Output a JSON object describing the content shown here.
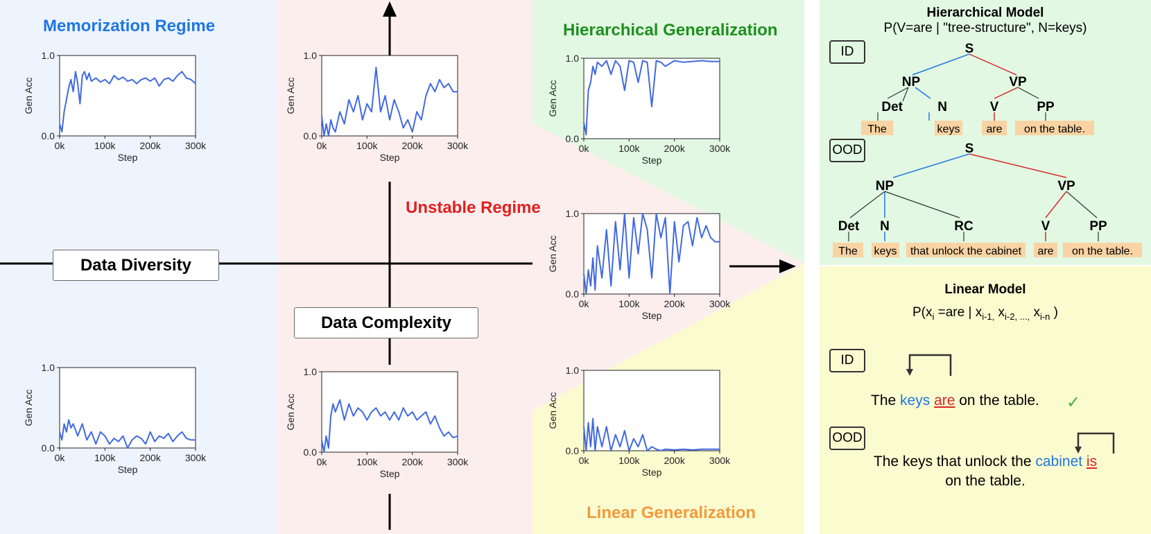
{
  "regimes": {
    "memorization": {
      "label": "Memorization Regime",
      "color": "#1f77e0"
    },
    "unstable": {
      "label": "Unstable Regime",
      "color": "#e0201f"
    },
    "hierarchical": {
      "label": "Hierarchical Generalization",
      "color": "#1e8f1e"
    },
    "linear": {
      "label": "Linear Generalization",
      "color": "#f29a3a"
    }
  },
  "axes": {
    "diversity": "Data Diversity",
    "complexity": "Data Complexity"
  },
  "colors": {
    "blue_bg": "#eef4fe",
    "pink_bg": "#fdeeee",
    "green_bg": "#e2f8e2",
    "yellow_bg": "#fbfbd0",
    "line": "#4169e1",
    "tree_blue": "#1f77e0",
    "tree_red": "#d62728",
    "word_bg": "#f9d3a3"
  },
  "chart_data": [
    {
      "id": "memo-top",
      "type": "line",
      "xlabel": "Step",
      "ylabel": "Gen Acc",
      "xticks": [
        "0k",
        "100k",
        "200k",
        "300k"
      ],
      "yticks": [
        "0.0",
        "1.0"
      ],
      "xlim": [
        0,
        300000
      ],
      "ylim": [
        0,
        1
      ],
      "x": [
        0,
        5000,
        10000,
        15000,
        20000,
        25000,
        30000,
        35000,
        40000,
        45000,
        50000,
        55000,
        60000,
        65000,
        70000,
        80000,
        90000,
        100000,
        110000,
        120000,
        130000,
        140000,
        150000,
        160000,
        170000,
        180000,
        190000,
        200000,
        210000,
        220000,
        230000,
        240000,
        250000,
        260000,
        270000,
        280000,
        290000,
        300000
      ],
      "y": [
        0.15,
        0.05,
        0.3,
        0.45,
        0.6,
        0.7,
        0.55,
        0.8,
        0.65,
        0.4,
        0.75,
        0.8,
        0.7,
        0.78,
        0.68,
        0.72,
        0.67,
        0.7,
        0.65,
        0.75,
        0.7,
        0.73,
        0.68,
        0.7,
        0.65,
        0.7,
        0.72,
        0.68,
        0.72,
        0.62,
        0.7,
        0.72,
        0.68,
        0.75,
        0.8,
        0.72,
        0.7,
        0.65
      ]
    },
    {
      "id": "memo-bottom",
      "type": "line",
      "xlabel": "Step",
      "ylabel": "Gen Acc",
      "xticks": [
        "0k",
        "100k",
        "200k",
        "300k"
      ],
      "yticks": [
        "0.0",
        "1.0"
      ],
      "xlim": [
        0,
        300000
      ],
      "ylim": [
        0,
        1
      ],
      "x": [
        0,
        5000,
        10000,
        15000,
        20000,
        25000,
        30000,
        40000,
        50000,
        60000,
        70000,
        80000,
        90000,
        100000,
        110000,
        120000,
        130000,
        140000,
        150000,
        160000,
        170000,
        180000,
        190000,
        200000,
        210000,
        220000,
        230000,
        240000,
        250000,
        260000,
        270000,
        280000,
        290000,
        300000
      ],
      "y": [
        0.2,
        0.1,
        0.3,
        0.2,
        0.35,
        0.25,
        0.3,
        0.15,
        0.3,
        0.1,
        0.2,
        0.05,
        0.2,
        0.15,
        0.05,
        0.12,
        0.08,
        0.15,
        0.0,
        0.1,
        0.15,
        0.12,
        0.05,
        0.2,
        0.08,
        0.15,
        0.12,
        0.18,
        0.08,
        0.15,
        0.2,
        0.12,
        0.1,
        0.1
      ]
    },
    {
      "id": "unstable-top",
      "type": "line",
      "xlabel": "Step",
      "ylabel": "Gen Acc",
      "xticks": [
        "0k",
        "100k",
        "200k",
        "300k"
      ],
      "yticks": [
        "0.0",
        "1.0"
      ],
      "xlim": [
        0,
        300000
      ],
      "ylim": [
        0,
        1
      ],
      "x": [
        0,
        5000,
        10000,
        15000,
        20000,
        25000,
        30000,
        40000,
        50000,
        60000,
        70000,
        80000,
        90000,
        100000,
        110000,
        120000,
        130000,
        140000,
        150000,
        160000,
        170000,
        180000,
        190000,
        200000,
        210000,
        220000,
        230000,
        240000,
        250000,
        260000,
        270000,
        280000,
        290000,
        300000
      ],
      "y": [
        0.25,
        0.0,
        0.15,
        0.0,
        0.2,
        0.1,
        0.05,
        0.3,
        0.15,
        0.45,
        0.3,
        0.5,
        0.2,
        0.4,
        0.3,
        0.85,
        0.3,
        0.5,
        0.2,
        0.45,
        0.3,
        0.1,
        0.2,
        0.05,
        0.3,
        0.2,
        0.5,
        0.65,
        0.55,
        0.7,
        0.6,
        0.65,
        0.55,
        0.55
      ]
    },
    {
      "id": "unstable-bottom",
      "type": "line",
      "xlabel": "Step",
      "ylabel": "Gen Acc",
      "xticks": [
        "0k",
        "100k",
        "200k",
        "300k"
      ],
      "yticks": [
        "0.0",
        "1.0"
      ],
      "xlim": [
        0,
        300000
      ],
      "ylim": [
        0,
        1
      ],
      "x": [
        0,
        5000,
        10000,
        15000,
        20000,
        25000,
        30000,
        40000,
        50000,
        60000,
        70000,
        80000,
        90000,
        100000,
        110000,
        120000,
        130000,
        140000,
        150000,
        160000,
        170000,
        180000,
        190000,
        200000,
        210000,
        220000,
        230000,
        240000,
        250000,
        260000,
        270000,
        280000,
        290000,
        300000
      ],
      "y": [
        0.15,
        0.0,
        0.2,
        0.05,
        0.45,
        0.6,
        0.5,
        0.65,
        0.4,
        0.6,
        0.45,
        0.55,
        0.5,
        0.4,
        0.5,
        0.55,
        0.45,
        0.5,
        0.4,
        0.5,
        0.4,
        0.55,
        0.45,
        0.5,
        0.4,
        0.45,
        0.5,
        0.35,
        0.45,
        0.3,
        0.2,
        0.25,
        0.18,
        0.2
      ]
    },
    {
      "id": "hier-top",
      "type": "line",
      "xlabel": "Step",
      "ylabel": "Gen Acc",
      "xticks": [
        "0k",
        "100k",
        "200k",
        "300k"
      ],
      "yticks": [
        "0.0",
        "1.0"
      ],
      "xlim": [
        0,
        300000
      ],
      "ylim": [
        0,
        1
      ],
      "x": [
        0,
        5000,
        10000,
        15000,
        20000,
        25000,
        30000,
        40000,
        50000,
        60000,
        70000,
        80000,
        90000,
        100000,
        110000,
        120000,
        130000,
        140000,
        150000,
        160000,
        170000,
        180000,
        200000,
        220000,
        240000,
        260000,
        280000,
        300000
      ],
      "y": [
        0.2,
        0.05,
        0.6,
        0.7,
        0.9,
        0.8,
        0.95,
        0.9,
        0.97,
        0.8,
        0.97,
        0.9,
        0.6,
        0.97,
        0.95,
        0.7,
        0.97,
        0.95,
        0.4,
        0.97,
        0.95,
        0.9,
        0.97,
        0.95,
        0.96,
        0.97,
        0.96,
        0.96
      ]
    },
    {
      "id": "hier-middle",
      "type": "line",
      "xlabel": "Step",
      "ylabel": "Gen Acc",
      "xticks": [
        "0k",
        "100k",
        "200k",
        "300k"
      ],
      "yticks": [
        "0.0",
        "1.0"
      ],
      "xlim": [
        0,
        300000
      ],
      "ylim": [
        0,
        1
      ],
      "x": [
        0,
        5000,
        10000,
        15000,
        20000,
        25000,
        30000,
        40000,
        50000,
        60000,
        70000,
        80000,
        90000,
        100000,
        110000,
        120000,
        130000,
        140000,
        150000,
        160000,
        170000,
        180000,
        190000,
        200000,
        210000,
        220000,
        230000,
        240000,
        250000,
        260000,
        270000,
        280000,
        290000,
        300000
      ],
      "y": [
        0.25,
        0.0,
        0.3,
        0.1,
        0.45,
        0.05,
        0.6,
        0.2,
        0.8,
        0.1,
        0.9,
        0.3,
        1.0,
        0.2,
        0.95,
        0.5,
        1.0,
        0.8,
        0.2,
        1.0,
        0.7,
        0.95,
        0.0,
        0.9,
        0.4,
        0.85,
        0.9,
        0.6,
        0.95,
        0.7,
        0.85,
        0.7,
        0.65,
        0.65
      ]
    },
    {
      "id": "linear-bottom",
      "type": "line",
      "xlabel": "Step",
      "ylabel": "Gen Acc",
      "xticks": [
        "0k",
        "100k",
        "200k",
        "300k"
      ],
      "yticks": [
        "0.0",
        "1.0"
      ],
      "xlim": [
        0,
        300000
      ],
      "ylim": [
        0,
        1
      ],
      "x": [
        0,
        5000,
        10000,
        15000,
        20000,
        25000,
        30000,
        40000,
        50000,
        60000,
        70000,
        80000,
        90000,
        100000,
        110000,
        120000,
        130000,
        140000,
        150000,
        160000,
        170000,
        180000,
        200000,
        220000,
        240000,
        260000,
        280000,
        300000
      ],
      "y": [
        0.3,
        0.0,
        0.35,
        0.05,
        0.4,
        0.0,
        0.3,
        0.05,
        0.3,
        0.0,
        0.2,
        0.05,
        0.25,
        0.0,
        0.15,
        0.05,
        0.2,
        0.0,
        0.05,
        0.02,
        0.0,
        0.02,
        0.01,
        0.02,
        0.01,
        0.02,
        0.02,
        0.02
      ]
    }
  ],
  "right_panel": {
    "hier": {
      "title": "Hierarchical Model",
      "formula": "P(V=are | \"tree-structure\", N=keys)",
      "id_tag": "ID",
      "ood_tag": "OOD",
      "tree_id": {
        "root": "S",
        "np": "NP",
        "vp": "VP",
        "det": "Det",
        "n": "N",
        "v": "V",
        "pp": "PP",
        "words": [
          "The",
          "keys",
          "are",
          "on the table."
        ]
      },
      "tree_ood": {
        "root": "S",
        "np": "NP",
        "vp": "VP",
        "det": "Det",
        "n": "N",
        "rc": "RC",
        "v": "V",
        "pp": "PP",
        "words": [
          "The",
          "keys",
          "that unlock the cabinet",
          "are",
          "on the table."
        ]
      }
    },
    "linear": {
      "title": "Linear Model",
      "formula_main": "P(x",
      "formula_sub_i": "i",
      "formula_rest": " =are | x",
      "formula_sub_1": "i-1,",
      "formula_x2": " x",
      "formula_sub_2": "i-2, ...,",
      "formula_xn": " x",
      "formula_sub_n": "i-n",
      "formula_close": " )",
      "id_tag": "ID",
      "ood_tag": "OOD",
      "id_sentence": {
        "pre": "The ",
        "noun": "keys",
        "sp": " ",
        "verb": "are",
        "post": " on the table.",
        "check": "✓"
      },
      "ood_sentence": {
        "pre": "The keys that unlock the ",
        "noun": "cabinet",
        "sp": " ",
        "verb": "is",
        "line2": "on the table."
      }
    }
  }
}
